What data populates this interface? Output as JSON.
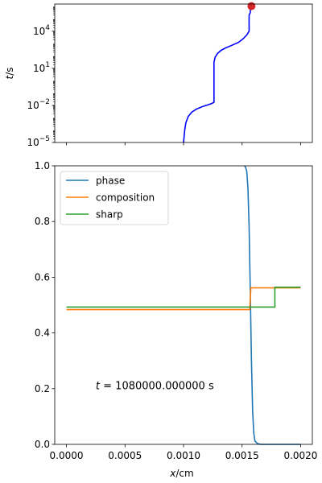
{
  "chart_data": [
    {
      "type": "line",
      "panel": "top",
      "ylabel": "t/s",
      "ylabel_parts": [
        "t",
        "/s"
      ],
      "yscale": "log",
      "xlim": [
        -0.0001,
        0.0021
      ],
      "ylim_exp": [
        -5,
        6.2
      ],
      "ytick_exps": [
        -5,
        -2,
        1,
        4
      ],
      "ytick_base": "10",
      "xticks_shown": false,
      "grid": false,
      "series": [
        {
          "color": "#0000ff",
          "points": [
            [
              0.001,
              -5.0
            ],
            [
              0.00101,
              -4.0
            ],
            [
              0.00102,
              -3.4
            ],
            [
              0.00104,
              -2.9
            ],
            [
              0.00107,
              -2.55
            ],
            [
              0.00111,
              -2.3
            ],
            [
              0.00116,
              -2.1
            ],
            [
              0.00121,
              -1.95
            ],
            [
              0.00124,
              -1.85
            ],
            [
              0.00126,
              -1.75
            ],
            [
              0.00126,
              1.5
            ],
            [
              0.00127,
              1.9
            ],
            [
              0.00129,
              2.2
            ],
            [
              0.00132,
              2.45
            ],
            [
              0.00136,
              2.65
            ],
            [
              0.00141,
              2.85
            ],
            [
              0.00147,
              3.1
            ],
            [
              0.00151,
              3.4
            ],
            [
              0.00154,
              3.7
            ],
            [
              0.00156,
              4.0
            ],
            [
              0.00156,
              5.3
            ],
            [
              0.00157,
              5.5
            ],
            [
              0.00157,
              6.0
            ],
            [
              0.00158,
              6.03
            ]
          ]
        }
      ],
      "marker": {
        "x": 0.00158,
        "y_exp": 6.03,
        "color": "#d62728"
      }
    },
    {
      "type": "line",
      "panel": "bottom",
      "xlabel": "x/cm",
      "xlabel_parts": [
        "x",
        "/cm"
      ],
      "ylabel": "",
      "xlim": [
        -0.0001,
        0.0021
      ],
      "ylim": [
        0.0,
        1.0
      ],
      "xticks": [
        "0.0000",
        "0.0005",
        "0.0010",
        "0.0015",
        "0.0020"
      ],
      "xtick_values": [
        0.0,
        0.0005,
        0.001,
        0.0015,
        0.002
      ],
      "yticks": [
        "0.0",
        "0.2",
        "0.4",
        "0.6",
        "0.8",
        "1.0"
      ],
      "ytick_values": [
        0.0,
        0.2,
        0.4,
        0.6,
        0.8,
        1.0
      ],
      "grid": false,
      "legend": "upper-left",
      "series": [
        {
          "name": "phase",
          "color": "#1f77b4",
          "points": [
            [
              0.00152,
              1.0
            ],
            [
              0.00153,
              0.995
            ],
            [
              0.00154,
              0.98
            ],
            [
              0.00155,
              0.92
            ],
            [
              0.00156,
              0.78
            ],
            [
              0.00157,
              0.55
            ],
            [
              0.00158,
              0.3
            ],
            [
              0.00159,
              0.12
            ],
            [
              0.0016,
              0.04
            ],
            [
              0.00161,
              0.012
            ],
            [
              0.00163,
              0.003
            ],
            [
              0.00166,
              0.0
            ],
            [
              0.002,
              0.0
            ]
          ]
        },
        {
          "name": "composition",
          "color": "#ff7f0e",
          "points": [
            [
              0.0,
              0.484
            ],
            [
              0.001565,
              0.484
            ],
            [
              0.001575,
              0.562
            ],
            [
              0.002,
              0.562
            ]
          ]
        },
        {
          "name": "sharp",
          "color": "#2ca02c",
          "points": [
            [
              0.0,
              0.493
            ],
            [
              0.00178,
              0.493
            ],
            [
              0.00178,
              0.564
            ],
            [
              0.002,
              0.564
            ]
          ]
        }
      ],
      "annotation": {
        "text_pre": "t",
        "text_post": " = 1080000.000000 s",
        "x": 0.00025,
        "y": 0.21
      }
    }
  ]
}
